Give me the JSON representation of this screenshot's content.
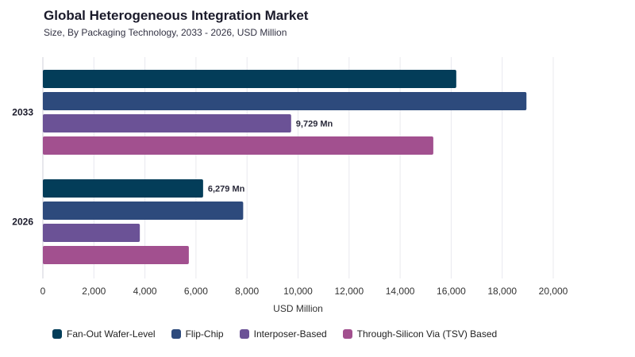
{
  "title": "Global Heterogeneous Integration Market",
  "subtitle": "Size, By Packaging Technology, 2033 - 2026, USD Million",
  "chart_data": {
    "type": "bar",
    "orientation": "horizontal",
    "categories": [
      "2033",
      "2026"
    ],
    "series": [
      {
        "name": "Fan-Out Wafer-Level",
        "color": "#033d59",
        "values": [
          16200,
          6279
        ]
      },
      {
        "name": "Flip-Chip",
        "color": "#2d4a7c",
        "values": [
          18950,
          7850
        ]
      },
      {
        "name": "Interposer-Based",
        "color": "#6b5296",
        "values": [
          9729,
          3800
        ]
      },
      {
        "name": "Through-Silicon Via (TSV) Based",
        "color": "#a2508f",
        "values": [
          15300,
          5720
        ]
      }
    ],
    "data_labels": [
      {
        "category": "2033",
        "series": "Interposer-Based",
        "text": "9,729 Mn"
      },
      {
        "category": "2026",
        "series": "Fan-Out Wafer-Level",
        "text": "6,279 Mn"
      }
    ],
    "xlabel": "USD Million",
    "xlim": [
      0,
      20000
    ],
    "xticks": [
      "0",
      "2,000",
      "4,000",
      "6,000",
      "8,000",
      "10,000",
      "12,000",
      "14,000",
      "16,000",
      "18,000",
      "20,000"
    ],
    "grid": true,
    "legend_position": "bottom"
  }
}
